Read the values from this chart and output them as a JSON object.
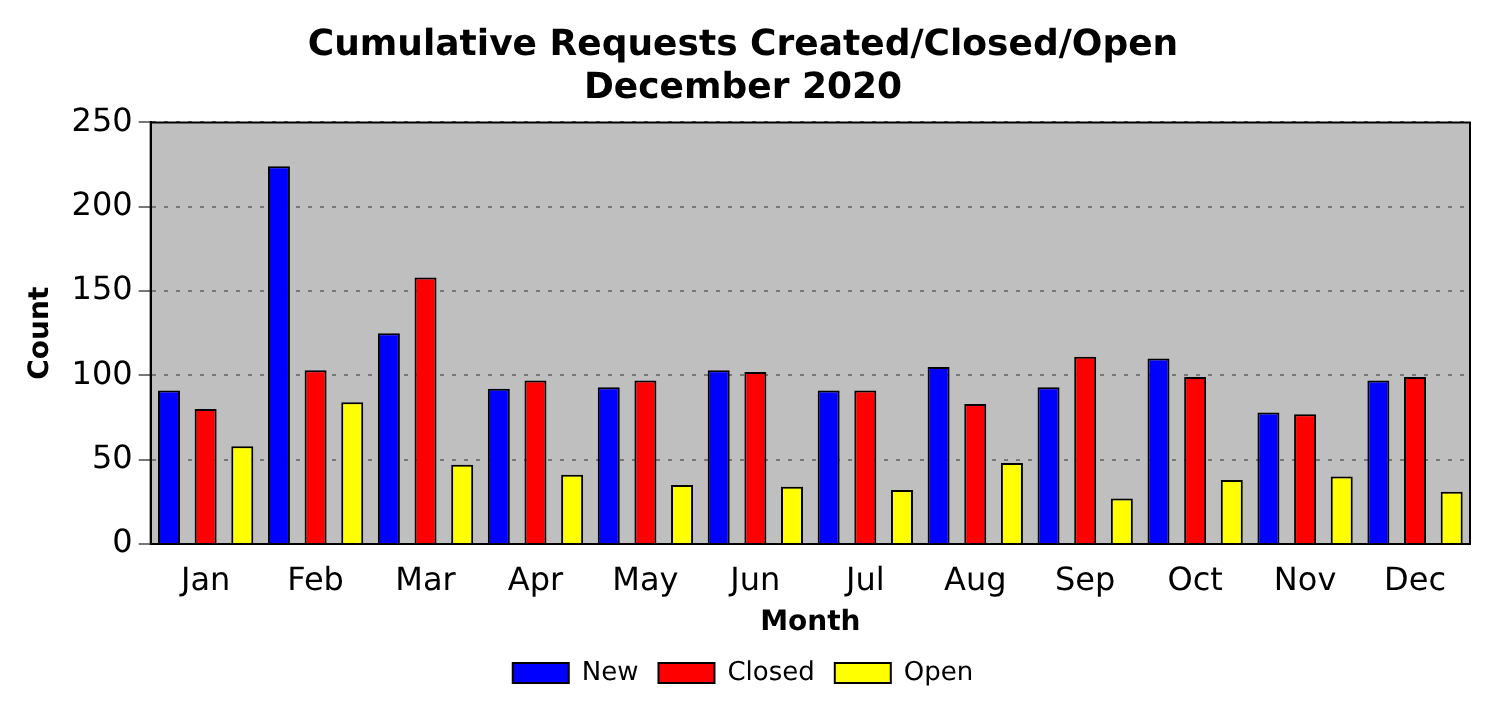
{
  "chart_data": {
    "type": "bar",
    "title": "Cumulative Requests Created/Closed/Open",
    "subtitle": "December 2020",
    "xlabel": "Month",
    "ylabel": "Count",
    "categories": [
      "Jan",
      "Feb",
      "Mar",
      "Apr",
      "May",
      "Jun",
      "Jul",
      "Aug",
      "Sep",
      "Oct",
      "Nov",
      "Dec"
    ],
    "series": [
      {
        "name": "New",
        "color": "#0000ff",
        "values": [
          91,
          224,
          125,
          92,
          93,
          103,
          91,
          105,
          93,
          110,
          78,
          97
        ]
      },
      {
        "name": "Closed",
        "color": "#ff0000",
        "values": [
          80,
          103,
          158,
          97,
          97,
          102,
          91,
          83,
          111,
          99,
          77,
          99
        ]
      },
      {
        "name": "Open",
        "color": "#ffff00",
        "values": [
          58,
          84,
          47,
          41,
          35,
          34,
          32,
          48,
          27,
          38,
          40,
          31
        ]
      }
    ],
    "ylim": [
      0,
      250
    ],
    "yticks": [
      0,
      50,
      100,
      150,
      200,
      250
    ],
    "grid": "y",
    "legend": "bottom"
  }
}
